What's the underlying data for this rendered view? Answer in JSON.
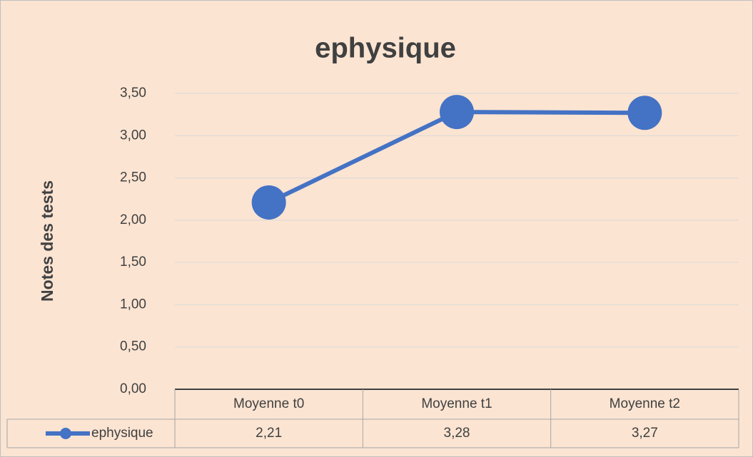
{
  "chart_data": {
    "type": "line",
    "title": "ephysique",
    "y_label": "Notes des tests",
    "categories": [
      "Moyenne t0",
      "Moyenne t1",
      "Moyenne t2"
    ],
    "series": [
      {
        "name": "ephysique",
        "color": "#4472c4",
        "values": [
          2.21,
          3.28,
          3.27
        ],
        "value_labels": [
          "2,21",
          "3,28",
          "3,27"
        ]
      }
    ],
    "ylim": [
      0,
      3.5
    ],
    "yticks": [
      {
        "value": 0,
        "label": "0,00"
      },
      {
        "value": 0.5,
        "label": "0,50"
      },
      {
        "value": 1,
        "label": "1,00"
      },
      {
        "value": 1.5,
        "label": "1,50"
      },
      {
        "value": 2,
        "label": "2,00"
      },
      {
        "value": 2.5,
        "label": "2,50"
      },
      {
        "value": 3,
        "label": "3,00"
      },
      {
        "value": 3.5,
        "label": "3,50"
      }
    ],
    "grid": true,
    "data_table": true
  }
}
